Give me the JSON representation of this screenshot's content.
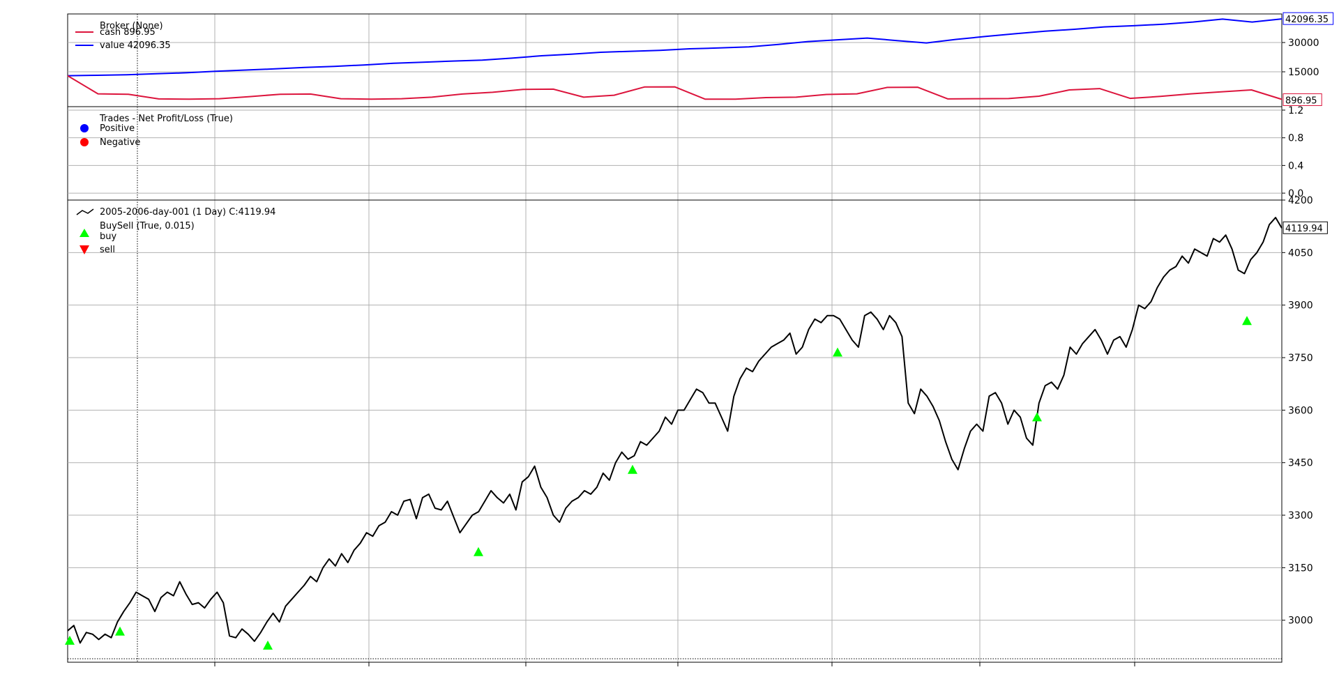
{
  "chart_data": [
    {
      "type": "line",
      "panel": "broker",
      "title": "",
      "legend": {
        "title": "Broker (None)",
        "entries": [
          {
            "label": "cash 896.95",
            "color": "#dc143c"
          },
          {
            "label": "value 42096.35",
            "color": "#0000ff"
          }
        ],
        "placement": "top-left"
      },
      "x": {
        "start": "2005-01-03",
        "end": "2006-12-29",
        "ticks_labeled": false
      },
      "ylim": [
        0,
        42500
      ],
      "yticks": [
        15000,
        30000
      ],
      "grid": true,
      "series": [
        {
          "name": "value",
          "color": "#0000ff",
          "values": [
            13000,
            13200,
            13500,
            14000,
            14500,
            15300,
            15900,
            16500,
            17200,
            17800,
            18500,
            19400,
            19900,
            20500,
            21000,
            22000,
            23200,
            24000,
            25000,
            25500,
            26000,
            26800,
            27200,
            27800,
            29000,
            30500,
            31400,
            32300,
            31000,
            29800,
            31600,
            33100,
            34500,
            35800,
            36800,
            38000,
            38600,
            39400,
            40500,
            42000,
            40500,
            42096.35
          ]
        },
        {
          "name": "cash",
          "color": "#dc143c",
          "values": [
            13000,
            3700,
            3500,
            1100,
            1000,
            1200,
            2300,
            3500,
            3600,
            1200,
            1000,
            1200,
            2000,
            3600,
            4500,
            6000,
            6100,
            2000,
            3000,
            7200,
            7300,
            1000,
            1000,
            1800,
            2000,
            3400,
            3700,
            7000,
            7100,
            1100,
            1200,
            1300,
            2500,
            5700,
            6400,
            1400,
            2400,
            3700,
            4700,
            5700,
            896.95
          ]
        }
      ],
      "last_value_labels": [
        "42096.35",
        "896.95"
      ]
    },
    {
      "type": "scatter",
      "panel": "trades",
      "title": "",
      "legend": {
        "title": "Trades - Net Profit/Loss (True)",
        "entries": [
          {
            "label": "Positive",
            "color": "#0000ff"
          },
          {
            "label": "Negative",
            "color": "#ff0000"
          }
        ],
        "placement": "top-left"
      },
      "ylim": [
        -0.1,
        1.25
      ],
      "yticks": [
        "1.2",
        "0.8",
        "0.4",
        "0.0"
      ],
      "grid": true,
      "series": [
        {
          "name": "Positive",
          "values": []
        },
        {
          "name": "Negative",
          "values": []
        }
      ]
    },
    {
      "type": "line",
      "panel": "price",
      "title": "",
      "legend": {
        "entries": [
          {
            "label": "2005-2006-day-001 (1 Day) C:4119.94",
            "color": "#000000"
          },
          {
            "label": "BuySell (True, 0.015)",
            "color": "#000000"
          },
          {
            "label": "buy",
            "color": "#00ff00"
          },
          {
            "label": "sell",
            "color": "#ff0000"
          }
        ],
        "placement": "top-left"
      },
      "x": {
        "start": "2005-01-03",
        "end": "2006-12-29",
        "ticks_labeled": false
      },
      "ylim": [
        2880,
        4200
      ],
      "yticks": [
        3000,
        3150,
        3300,
        3450,
        3600,
        3750,
        3900,
        4050,
        4200
      ],
      "grid": true,
      "series": [
        {
          "name": "close",
          "color": "#000000",
          "values": [
            2970,
            2985,
            2935,
            2965,
            2960,
            2945,
            2960,
            2950,
            2995,
            3025,
            3050,
            3080,
            3070,
            3060,
            3025,
            3065,
            3080,
            3070,
            3110,
            3075,
            3045,
            3050,
            3035,
            3060,
            3080,
            3050,
            2955,
            2950,
            2975,
            2960,
            2940,
            2965,
            2995,
            3020,
            2995,
            3040,
            3060,
            3080,
            3100,
            3125,
            3110,
            3150,
            3175,
            3155,
            3190,
            3165,
            3200,
            3220,
            3250,
            3240,
            3270,
            3280,
            3310,
            3300,
            3340,
            3345,
            3290,
            3350,
            3360,
            3320,
            3315,
            3340,
            3295,
            3250,
            3275,
            3300,
            3310,
            3340,
            3370,
            3350,
            3335,
            3360,
            3315,
            3395,
            3410,
            3440,
            3380,
            3350,
            3300,
            3280,
            3320,
            3340,
            3350,
            3370,
            3360,
            3380,
            3420,
            3400,
            3450,
            3480,
            3460,
            3470,
            3510,
            3500,
            3520,
            3540,
            3580,
            3560,
            3600,
            3600,
            3630,
            3660,
            3650,
            3620,
            3620,
            3580,
            3540,
            3640,
            3690,
            3720,
            3710,
            3740,
            3760,
            3780,
            3790,
            3800,
            3820,
            3760,
            3780,
            3830,
            3860,
            3850,
            3870,
            3870,
            3860,
            3830,
            3800,
            3780,
            3870,
            3880,
            3860,
            3830,
            3870,
            3850,
            3810,
            3620,
            3590,
            3660,
            3640,
            3610,
            3570,
            3510,
            3460,
            3430,
            3490,
            3540,
            3560,
            3540,
            3640,
            3650,
            3620,
            3560,
            3600,
            3580,
            3520,
            3500,
            3620,
            3670,
            3680,
            3660,
            3700,
            3780,
            3760,
            3790,
            3810,
            3830,
            3800,
            3760,
            3800,
            3810,
            3780,
            3830,
            3900,
            3890,
            3910,
            3950,
            3980,
            4000,
            4010,
            4040,
            4020,
            4060,
            4050,
            4040,
            4090,
            4080,
            4100,
            4060,
            4000,
            3990,
            4030,
            4050,
            4080,
            4130,
            4150,
            4119.94
          ]
        }
      ],
      "buy_markers": [
        2942,
        2968,
        2928,
        3195,
        3430,
        3765,
        3580,
        3855
      ],
      "sell_markers": [],
      "last_value_label": "4119.94"
    }
  ]
}
